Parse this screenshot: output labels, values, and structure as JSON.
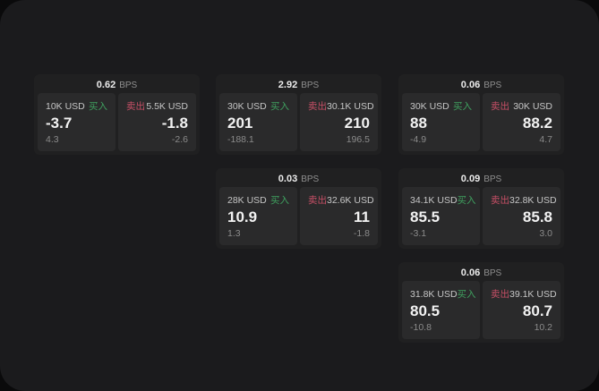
{
  "labels": {
    "buy": "买入",
    "sell": "卖出",
    "bps_unit": "BPS"
  },
  "colors": {
    "buy_green": "#3fa05f",
    "sell_red": "#c64f66",
    "surface": "#1b1b1d",
    "card_background": "#202021",
    "panel_background": "#2a2a2b"
  },
  "cards": [
    {
      "bps": "0.62",
      "buy": {
        "amount": "10K USD",
        "price": "-3.7",
        "delta": "4.3"
      },
      "sell": {
        "amount": "5.5K USD",
        "price": "-1.8",
        "delta": "-2.6"
      }
    },
    {
      "bps": "2.92",
      "buy": {
        "amount": "30K USD",
        "price": "201",
        "delta": "-188.1"
      },
      "sell": {
        "amount": "30.1K USD",
        "price": "210",
        "delta": "196.5"
      }
    },
    {
      "bps": "0.06",
      "buy": {
        "amount": "30K USD",
        "price": "88",
        "delta": "-4.9"
      },
      "sell": {
        "amount": "30K USD",
        "price": "88.2",
        "delta": "4.7"
      }
    },
    {
      "bps": "0.03",
      "buy": {
        "amount": "28K USD",
        "price": "10.9",
        "delta": "1.3"
      },
      "sell": {
        "amount": "32.6K USD",
        "price": "11",
        "delta": "-1.8"
      }
    },
    {
      "bps": "0.09",
      "buy": {
        "amount": "34.1K USD",
        "price": "85.5",
        "delta": "-3.1"
      },
      "sell": {
        "amount": "32.8K USD",
        "price": "85.8",
        "delta": "3.0"
      }
    },
    {
      "bps": "0.06",
      "buy": {
        "amount": "31.8K USD",
        "price": "80.5",
        "delta": "-10.8"
      },
      "sell": {
        "amount": "39.1K USD",
        "price": "80.7",
        "delta": "10.2"
      }
    }
  ]
}
